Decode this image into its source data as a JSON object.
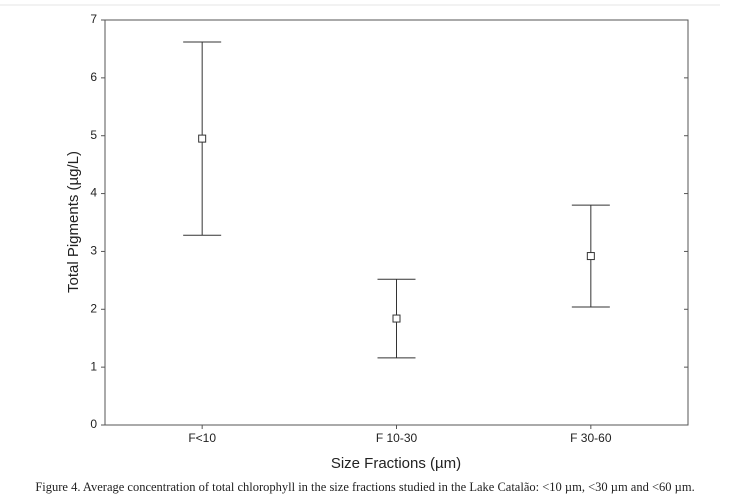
{
  "chart_data": {
    "type": "errorbar",
    "categories": [
      "F<10",
      "F 10-30",
      "F 30-60"
    ],
    "values": [
      4.95,
      1.84,
      2.92
    ],
    "errors": [
      1.67,
      0.68,
      0.88
    ],
    "color": "#333333",
    "ylim": [
      0,
      7
    ],
    "yticks": [
      0,
      1,
      2,
      3,
      4,
      5,
      6,
      7
    ],
    "xlabel": "Size Fractions (µm)",
    "ylabel": "Total Pigments (µg/L)",
    "caption": "Figure 4. Average concentration of total chlorophyll in the size fractions studied in the Lake Catalão: <10 µm, <30 µm and <60 µm."
  }
}
